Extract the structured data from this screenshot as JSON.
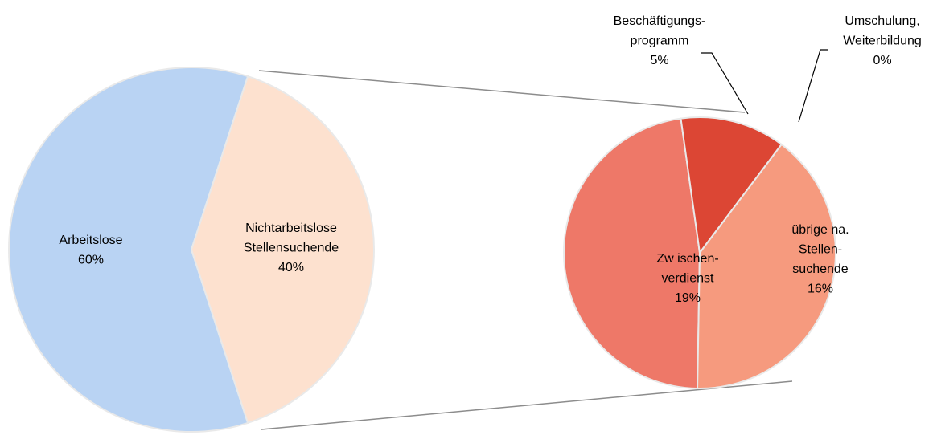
{
  "chart_data": [
    {
      "type": "pie",
      "categories": [
        [
          "Arbeitslose"
        ],
        [
          "Nichtarbeitslose",
          "Stellensuchende"
        ]
      ],
      "values": [
        60,
        40
      ],
      "value_labels": [
        "60%",
        "40%"
      ],
      "colors": [
        "#b9d3f3",
        "#fde1cf"
      ]
    },
    {
      "type": "pie",
      "categories": [
        [
          "Zw ischen-",
          "verdienst"
        ],
        [
          "Beschäftigungs-",
          "programm"
        ],
        [
          "Umschulung,",
          "Weiterbildung"
        ],
        [
          "übrige na.",
          "Stellen-",
          "suchende"
        ]
      ],
      "values": [
        19,
        5,
        0,
        16
      ],
      "value_labels": [
        "19%",
        "5%",
        "0%",
        "16%"
      ],
      "colors": [
        "#ee7868",
        "#dc4634",
        "#e8604c",
        "#f69a7e"
      ]
    }
  ]
}
